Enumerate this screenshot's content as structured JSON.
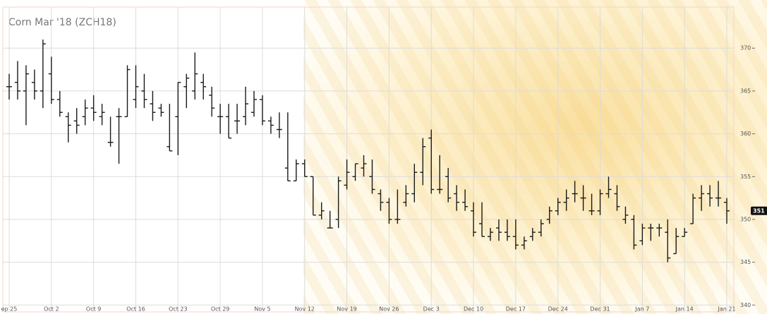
{
  "chart_data": {
    "type": "ohlc",
    "title": "Corn Mar '18 (ZCH18)",
    "color": "#1a1a1a",
    "grid": true,
    "categories": [
      "ep 25",
      null,
      null,
      null,
      null,
      "Oct 2",
      null,
      null,
      null,
      null,
      "Oct 9",
      null,
      null,
      null,
      null,
      "Oct 16",
      null,
      null,
      null,
      null,
      "Oct 23",
      null,
      null,
      null,
      null,
      "Oct 29",
      null,
      null,
      null,
      null,
      "Nov 5",
      null,
      null,
      null,
      null,
      "Nov 12",
      null,
      null,
      null,
      null,
      "Nov 19",
      null,
      null,
      null,
      null,
      "Nov 26",
      null,
      null,
      null,
      null,
      "Dec 3",
      null,
      null,
      null,
      null,
      "Dec 10",
      null,
      null,
      null,
      null,
      "Dec 17",
      null,
      null,
      null,
      null,
      "Dec 24",
      null,
      null,
      null,
      null,
      "Dec 31",
      null,
      null,
      null,
      null,
      "Jan 7",
      null,
      null,
      null,
      null,
      "Jan 14",
      null,
      null,
      null,
      null,
      "Jan 21"
    ],
    "open": [
      365.5,
      366,
      365,
      366,
      365,
      367,
      364,
      362,
      361.5,
      362,
      363,
      362,
      359,
      362,
      362,
      364,
      365,
      363.5,
      363,
      358.5,
      362,
      365.5,
      365,
      366,
      364.5,
      362,
      362,
      361.5,
      362,
      362.5,
      364,
      361.5,
      360.5,
      356,
      354.5,
      356.5,
      355,
      350.5,
      349,
      350,
      354,
      355,
      356,
      355,
      353,
      352,
      350,
      352,
      353,
      355.5,
      359.5,
      353.5,
      355,
      353,
      352,
      351,
      349.5,
      348,
      349,
      348.5,
      348,
      347,
      348,
      348.5,
      350,
      351,
      352,
      353,
      352.5,
      351,
      351,
      353,
      353,
      350,
      350,
      347.5,
      349,
      349,
      348.5,
      346,
      348,
      349.5,
      352.5,
      353,
      352.5,
      352
    ],
    "high": [
      367,
      368.5,
      368,
      367.5,
      371,
      369,
      365,
      362.5,
      363,
      364,
      364.5,
      363.5,
      362,
      363,
      368,
      368,
      367,
      365,
      363.5,
      363.5,
      366,
      367,
      369.5,
      367,
      365.5,
      363.5,
      363.5,
      363.5,
      365.5,
      365,
      364.5,
      362,
      362.5,
      362.5,
      357,
      357,
      355,
      352,
      351,
      355,
      357,
      356.5,
      357.5,
      357,
      353.5,
      352.5,
      353.5,
      354,
      356.5,
      359.5,
      360.5,
      357.5,
      356,
      354,
      353.5,
      352,
      352,
      349,
      350,
      350,
      350,
      348,
      349,
      350,
      351.5,
      352.5,
      353.5,
      354.5,
      354,
      353,
      353.5,
      355,
      354,
      351.5,
      350.5,
      349.5,
      349.5,
      349.5,
      350,
      349,
      349,
      353,
      354,
      354,
      354.5,
      352.5
    ],
    "low": [
      364,
      364,
      361,
      364,
      363,
      363.5,
      362,
      359,
      360,
      361,
      361.5,
      361,
      358.5,
      356.5,
      362,
      363,
      363,
      361.5,
      362,
      358,
      357.5,
      363,
      364,
      364,
      362,
      360,
      359.5,
      360,
      361,
      362,
      361,
      360,
      359.5,
      354.5,
      354.5,
      355,
      350.5,
      350,
      349,
      349,
      353.5,
      354.5,
      355,
      353,
      351,
      349.5,
      349.5,
      351.5,
      352,
      354,
      353,
      353,
      352,
      351,
      351,
      348,
      348,
      347.5,
      347.5,
      347.5,
      346.5,
      346.5,
      347.5,
      348,
      349.5,
      350.5,
      351,
      352,
      351,
      350.5,
      350.5,
      352.5,
      351,
      349.5,
      346.5,
      347,
      347.5,
      348,
      345,
      346,
      348,
      349.5,
      351,
      351.5,
      351.5,
      349.5
    ],
    "close": [
      365.5,
      365,
      367,
      365,
      370.5,
      364,
      362.5,
      361,
      361,
      363,
      362.5,
      362.5,
      359,
      362,
      367.5,
      365.5,
      364,
      362.5,
      362.5,
      358,
      366,
      366.5,
      367,
      365.5,
      363,
      362,
      359.5,
      361.5,
      363.5,
      364,
      361.5,
      361,
      360.5,
      354.5,
      356.5,
      355,
      350.5,
      351,
      349,
      354.5,
      355.5,
      356.5,
      356.5,
      353.5,
      352,
      350,
      350,
      353,
      355.5,
      358.5,
      353.5,
      353.5,
      352.5,
      352,
      351.5,
      348.5,
      348,
      348.5,
      348.5,
      348,
      347,
      347.5,
      348.5,
      349.5,
      351,
      352,
      352.5,
      353,
      352.5,
      351,
      353,
      353.5,
      351.5,
      350.5,
      347,
      349,
      349,
      349,
      345.5,
      348,
      348.5,
      352.5,
      353,
      352.5,
      352.5,
      351
    ],
    "ylim": [
      339.2,
      374.8
    ],
    "yticks": [
      340,
      345,
      350,
      355,
      360,
      365,
      370
    ]
  }
}
